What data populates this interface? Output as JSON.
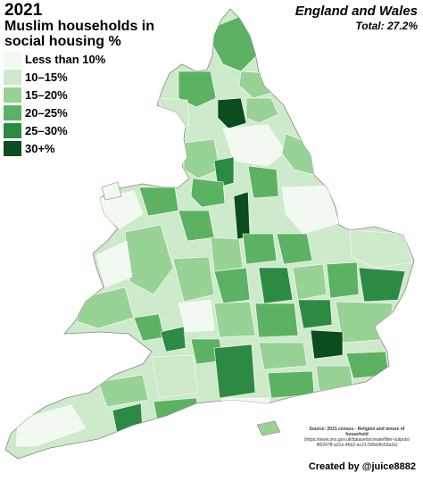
{
  "title": {
    "year": "2021",
    "main": "Muslim households in social housing %",
    "region": "England and Wales",
    "total": "Total: 27.2%"
  },
  "legend": [
    {
      "label": "Less than 10%",
      "color": "#f2f9f1"
    },
    {
      "label": "10–15%",
      "color": "#cdeacb"
    },
    {
      "label": "15–20%",
      "color": "#98d294"
    },
    {
      "label": "20–25%",
      "color": "#5cb262"
    },
    {
      "label": "25–30%",
      "color": "#2c8a42"
    },
    {
      "label": "30+%",
      "color": "#0b4d1c"
    }
  ],
  "source": {
    "line1": "Source: 2021 census - Religion and tenure of household",
    "line2": "(https://www.ons.gov.uk/datasets/create/filter-outputs/",
    "line3": "9f0247ff-a31e-46b2-ac21-580e9fc50a2e)"
  },
  "credit": "Created by @juice8882"
}
